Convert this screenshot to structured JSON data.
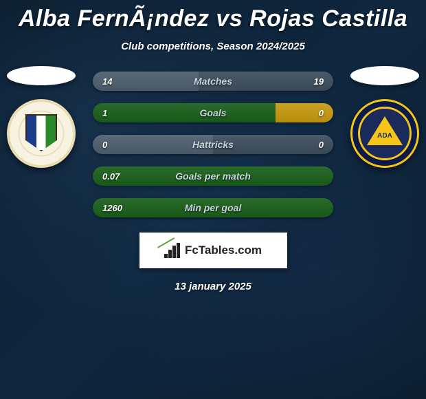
{
  "title": "Alba FernÃ¡ndez vs Rojas Castilla",
  "subtitle": "Club competitions, Season 2024/2025",
  "footer_date": "13 january 2025",
  "brand_text": "FcTables.com",
  "colors": {
    "player1_bar": "#2a6a2a",
    "player1_bar_light": "#3a8a3a",
    "player2_bar": "#c9a020",
    "neutral_bar": "#5a6a78",
    "neutral_bar_alt": "#4a5a68",
    "background_dark": "#0a1a2a",
    "text": "#ffffff",
    "label": "#c8d4e0"
  },
  "crest_right_txt": "ADA",
  "stats": [
    {
      "label": "Matches",
      "left_value": "14",
      "right_value": "19",
      "left_width_pct": 44,
      "right_width_pct": 56,
      "left_color": "#5a6a78",
      "right_color": "#4a5a68"
    },
    {
      "label": "Goals",
      "left_value": "1",
      "right_value": "0",
      "left_width_pct": 76,
      "right_width_pct": 24,
      "left_color": "#2a6a2a",
      "right_color": "#c9a020"
    },
    {
      "label": "Hattricks",
      "left_value": "0",
      "right_value": "0",
      "left_width_pct": 50,
      "right_width_pct": 50,
      "left_color": "#5a6a78",
      "right_color": "#4a5a68"
    },
    {
      "label": "Goals per match",
      "left_value": "0.07",
      "right_value": "",
      "left_width_pct": 100,
      "right_width_pct": 0,
      "left_color": "#2a6a2a",
      "right_color": "#c9a020"
    },
    {
      "label": "Min per goal",
      "left_value": "1260",
      "right_value": "",
      "left_width_pct": 100,
      "right_width_pct": 0,
      "left_color": "#2a6a2a",
      "right_color": "#c9a020"
    }
  ]
}
